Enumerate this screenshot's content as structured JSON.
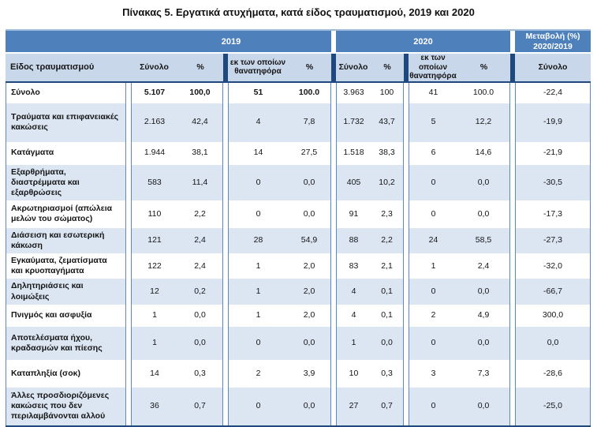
{
  "title": "Πίνακας 5. Εργατικά ατυχήματα, κατά είδος τραυματισμού, 2019 και 2020",
  "header": {
    "y2019": "2019",
    "y2020": "2020",
    "change": [
      "Μεταβολή (%)",
      "2020/2019"
    ],
    "injury_type": "Είδος τραυματισμού",
    "total": "Σύνολο",
    "percent": "%",
    "of_which_fatal": [
      "εκ των οποίων",
      "θανατηφόρα"
    ]
  },
  "rows": [
    {
      "label": "Σύνολο",
      "bold_2019": true,
      "values": [
        "5.107",
        "100,0",
        "51",
        "100.0",
        "3.963",
        "100",
        "41",
        "100.0",
        "-22,4"
      ]
    },
    {
      "label": "Τραύματα και επιφανειακές κακώσεις",
      "bold_2019": false,
      "values": [
        "2.163",
        "42,4",
        "4",
        "7,8",
        "1.732",
        "43,7",
        "5",
        "12,2",
        "-19,9"
      ]
    },
    {
      "label": "Κατάγματα",
      "bold_2019": false,
      "values": [
        "1.944",
        "38,1",
        "14",
        "27,5",
        "1.518",
        "38,3",
        "6",
        "14,6",
        "-21,9"
      ]
    },
    {
      "label": "Εξαρθρήματα, διαστρέμματα και εξαρθρώσεις",
      "bold_2019": false,
      "values": [
        "583",
        "11,4",
        "0",
        "0,0",
        "405",
        "10,2",
        "0",
        "0,0",
        "-30,5"
      ]
    },
    {
      "label": "Ακρωτηριασμοί (απώλεια μελών του σώματος)",
      "bold_2019": false,
      "values": [
        "110",
        "2,2",
        "0",
        "0,0",
        "91",
        "2,3",
        "0",
        "0,0",
        "-17,3"
      ]
    },
    {
      "label": "Διάσειση και εσωτερική κάκωση",
      "bold_2019": false,
      "values": [
        "121",
        "2,4",
        "28",
        "54,9",
        "88",
        "2,2",
        "24",
        "58,5",
        "-27,3"
      ]
    },
    {
      "label": "Εγκαύματα, ζεματίσματα και κρυοπαγήματα",
      "bold_2019": false,
      "values": [
        "122",
        "2,4",
        "1",
        "2,0",
        "83",
        "2,1",
        "1",
        "2,4",
        "-32,0"
      ]
    },
    {
      "label": "Δηλητηριάσεις και λοιμώξεις",
      "bold_2019": false,
      "values": [
        "12",
        "0,2",
        "1",
        "2,0",
        "4",
        "0,1",
        "0",
        "0,0",
        "-66,7"
      ]
    },
    {
      "label": "Πνιγμός και ασφυξία",
      "bold_2019": false,
      "values": [
        "1",
        "0,0",
        "1",
        "2,0",
        "4",
        "0,1",
        "2",
        "4,9",
        "300,0"
      ]
    },
    {
      "label": "Αποτελέσματα ήχου, κραδασμών και πίεσης",
      "bold_2019": false,
      "values": [
        "1",
        "0,0",
        "0",
        "0,0",
        "1",
        "0,0",
        "0",
        "0,0",
        "0,0"
      ]
    },
    {
      "label": "Καταπληξία (σοκ)",
      "bold_2019": false,
      "values": [
        "14",
        "0,3",
        "2",
        "3,9",
        "10",
        "0,3",
        "3",
        "7,3",
        "-28,6"
      ]
    },
    {
      "label": "Άλλες προσδιοριζόμενες κακώσεις που δεν περιλαμβάνονται αλλού",
      "bold_2019": false,
      "values": [
        "36",
        "0,7",
        "0",
        "0,0",
        "27",
        "0,7",
        "0",
        "0,0",
        "-25,0"
      ]
    }
  ],
  "colors": {
    "header_dark": "#4E80BC",
    "header_light": "#C9D7EB",
    "row_stripe": "#DCE6F3",
    "navy": "#1F497D",
    "grid_blue": "#5D89C0"
  }
}
